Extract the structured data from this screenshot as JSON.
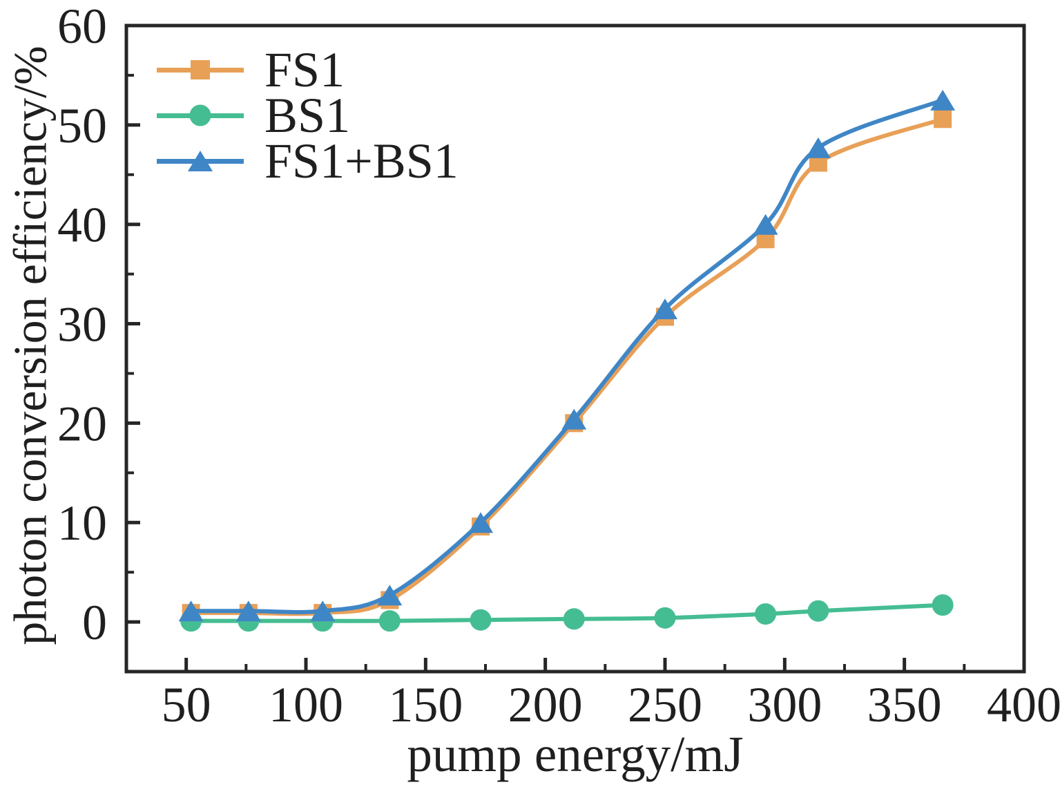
{
  "figure": {
    "background": "#ffffff",
    "axis_color": "#262626",
    "text_color": "#1f1f1f"
  },
  "chart_data": {
    "type": "line",
    "title": "",
    "xlabel": "pump energy/mJ",
    "ylabel": "photon conversion efficiency/%",
    "xlim": [
      25,
      400
    ],
    "ylim": [
      -5,
      60
    ],
    "grid": false,
    "x_major_ticks": [
      50,
      100,
      150,
      200,
      250,
      300,
      350,
      400
    ],
    "x_minor_ticks": [
      75,
      125,
      175,
      225,
      275,
      325,
      375
    ],
    "y_major_ticks": [
      0,
      10,
      20,
      30,
      40,
      50,
      60
    ],
    "y_minor_ticks": [
      5,
      15,
      25,
      35,
      45,
      55
    ],
    "x": [
      52,
      76,
      107,
      135,
      173,
      212,
      250,
      292,
      314,
      366
    ],
    "series": [
      {
        "name": "FS1",
        "color": "#E8A057",
        "marker": "square",
        "values": [
          0.9,
          0.9,
          0.9,
          2.2,
          9.6,
          20.0,
          30.7,
          38.5,
          46.2,
          50.6
        ]
      },
      {
        "name": "BS1",
        "color": "#45BD92",
        "marker": "circle",
        "values": [
          0.1,
          0.1,
          0.1,
          0.1,
          0.2,
          0.3,
          0.4,
          0.8,
          1.1,
          1.7
        ]
      },
      {
        "name": "FS1+BS1",
        "color": "#3F86C6",
        "marker": "triangle",
        "values": [
          1.1,
          1.1,
          1.1,
          2.7,
          10.0,
          20.4,
          31.5,
          40.0,
          47.7,
          52.5
        ]
      }
    ],
    "legend": {
      "position": "upper-left",
      "entries": [
        "FS1",
        "BS1",
        "FS1+BS1"
      ]
    }
  }
}
